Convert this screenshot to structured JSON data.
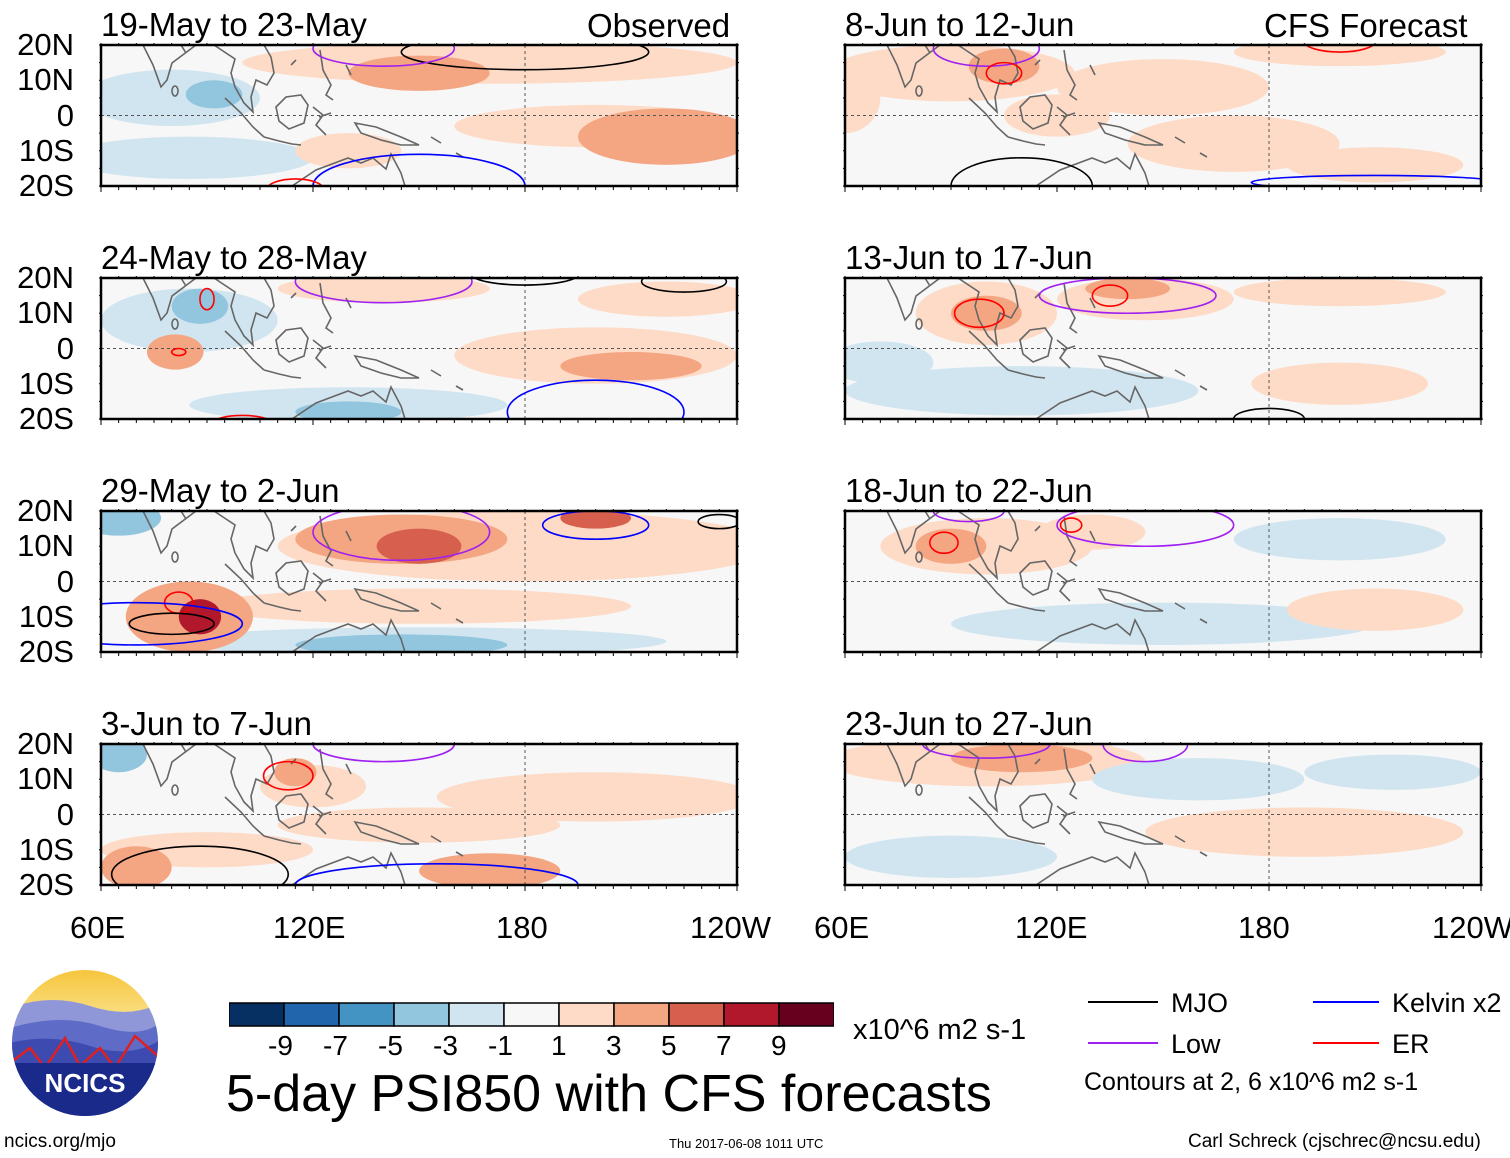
{
  "figure": {
    "title": "5-day PSI850 with CFS forecasts",
    "observed_label": "Observed",
    "forecast_label": "CFS Forecast",
    "timestamp": "Thu 2017-06-08 1011 UTC",
    "site": "ncics.org/mjo",
    "author": "Carl Schreck (cjschrec@ncsu.edu)",
    "logo_text": "NCICS"
  },
  "axes": {
    "lat_labels": [
      "20N",
      "10N",
      "0",
      "10S",
      "20S"
    ],
    "lon_labels": [
      "60E",
      "120E",
      "180",
      "120W"
    ]
  },
  "colorbar": {
    "units": "x10^6 m2 s-1",
    "ticks": [
      "-9",
      "-7",
      "-5",
      "-3",
      "-1",
      "1",
      "3",
      "5",
      "7",
      "9"
    ],
    "colors": [
      "#053061",
      "#2166ac",
      "#4393c3",
      "#92c5de",
      "#d1e5f0",
      "#f7f7f7",
      "#fddbc7",
      "#f4a582",
      "#d6604d",
      "#b2182b",
      "#67001f"
    ]
  },
  "legend": {
    "items": [
      {
        "label": "MJO",
        "color": "#000000"
      },
      {
        "label": "Kelvin x2",
        "color": "#0000ff"
      },
      {
        "label": "Low",
        "color": "#a020f0"
      },
      {
        "label": "ER",
        "color": "#ff0000"
      }
    ],
    "note": "Contours at 2, 6 x10^6 m2 s-1"
  },
  "chart_data": {
    "type": "heatmap",
    "lon_range": [
      60,
      240
    ],
    "lat_range": [
      -20,
      20
    ],
    "panels": [
      {
        "title": "19-May to 23-May",
        "side": "observed",
        "blobs": [
          [
            170,
            15,
            70,
            6,
            2
          ],
          [
            150,
            12,
            20,
            5,
            4
          ],
          [
            80,
            5,
            25,
            8,
            -2
          ],
          [
            92,
            6,
            8,
            4,
            -4
          ],
          [
            220,
            -6,
            25,
            8,
            4
          ],
          [
            200,
            -3,
            40,
            6,
            2
          ],
          [
            85,
            -12,
            35,
            6,
            -2
          ],
          [
            130,
            -10,
            15,
            5,
            2
          ]
        ],
        "contours": [
          [
            "MJO",
            180,
            18,
            35,
            5
          ],
          [
            "Low",
            140,
            19,
            20,
            5
          ],
          [
            "Kelvin",
            150,
            -20,
            30,
            9
          ],
          [
            "ER",
            115,
            -21,
            8,
            3
          ]
        ]
      },
      {
        "title": "8-Jun to 12-Jun",
        "side": "forecast",
        "blobs": [
          [
            90,
            12,
            35,
            8,
            2
          ],
          [
            105,
            14,
            10,
            5,
            4
          ],
          [
            150,
            8,
            30,
            8,
            2
          ],
          [
            200,
            18,
            30,
            4,
            2
          ],
          [
            170,
            -8,
            30,
            8,
            2
          ],
          [
            210,
            -14,
            25,
            5,
            2
          ],
          [
            120,
            0,
            15,
            6,
            2
          ],
          [
            60,
            5,
            10,
            10,
            2
          ]
        ],
        "contours": [
          [
            "Low",
            100,
            19,
            15,
            5
          ],
          [
            "ER",
            105,
            12,
            5,
            3
          ],
          [
            "MJO",
            110,
            -20,
            20,
            8
          ],
          [
            "Kelvin",
            210,
            -19,
            35,
            2
          ],
          [
            "ER",
            200,
            21,
            10,
            3
          ]
        ]
      },
      {
        "title": "24-May to 28-May",
        "side": "observed",
        "blobs": [
          [
            85,
            8,
            25,
            9,
            -2
          ],
          [
            88,
            12,
            8,
            5,
            -4
          ],
          [
            81,
            -1,
            8,
            5,
            3
          ],
          [
            130,
            -16,
            45,
            5,
            -2
          ],
          [
            130,
            -18,
            15,
            3,
            -4
          ],
          [
            200,
            -2,
            40,
            8,
            2
          ],
          [
            210,
            -5,
            20,
            4,
            4
          ],
          [
            140,
            17,
            30,
            4,
            2
          ],
          [
            220,
            14,
            25,
            5,
            2
          ]
        ],
        "contours": [
          [
            "Low",
            140,
            19,
            25,
            6
          ],
          [
            "MJO",
            180,
            21,
            15,
            3
          ],
          [
            "MJO",
            225,
            19,
            12,
            3
          ],
          [
            "ER",
            82,
            -1,
            2,
            1
          ],
          [
            "ER",
            90,
            14,
            2,
            3
          ],
          [
            "ER",
            100,
            -21,
            8,
            2
          ],
          [
            "Kelvin",
            200,
            -18,
            25,
            9
          ]
        ]
      },
      {
        "title": "13-Jun to 17-Jun",
        "side": "forecast",
        "blobs": [
          [
            100,
            10,
            20,
            9,
            2
          ],
          [
            100,
            10,
            10,
            5,
            4
          ],
          [
            145,
            14,
            25,
            6,
            2
          ],
          [
            140,
            17,
            12,
            3,
            4
          ],
          [
            200,
            16,
            30,
            4,
            2
          ],
          [
            110,
            -12,
            50,
            7,
            -2
          ],
          [
            70,
            -4,
            15,
            6,
            -2
          ],
          [
            200,
            -10,
            25,
            6,
            2
          ]
        ],
        "contours": [
          [
            "ER",
            98,
            10,
            7,
            4
          ],
          [
            "ER",
            135,
            15,
            5,
            3
          ],
          [
            "Low",
            140,
            15,
            25,
            5
          ],
          [
            "MJO",
            180,
            -20,
            10,
            3
          ]
        ]
      },
      {
        "title": "29-May to 2-Jun",
        "side": "observed",
        "blobs": [
          [
            65,
            18,
            12,
            5,
            -4
          ],
          [
            180,
            10,
            70,
            10,
            2
          ],
          [
            145,
            12,
            30,
            7,
            4
          ],
          [
            150,
            10,
            12,
            5,
            6
          ],
          [
            200,
            18,
            10,
            3,
            6
          ],
          [
            85,
            -10,
            18,
            10,
            4
          ],
          [
            88,
            -10,
            6,
            5,
            7
          ],
          [
            150,
            -7,
            60,
            5,
            2
          ],
          [
            150,
            -17,
            70,
            4,
            -2
          ],
          [
            145,
            -18,
            30,
            3,
            -4
          ]
        ],
        "contours": [
          [
            "Low",
            145,
            14,
            25,
            8
          ],
          [
            "Kelvin",
            200,
            16,
            15,
            4
          ],
          [
            "MJO",
            235,
            17,
            6,
            2
          ],
          [
            "ER",
            82,
            -6,
            4,
            3
          ],
          [
            "MJO",
            80,
            -12,
            12,
            3
          ],
          [
            "Kelvin",
            70,
            -12,
            30,
            6
          ]
        ]
      },
      {
        "title": "18-Jun to 22-Jun",
        "side": "forecast",
        "blobs": [
          [
            100,
            10,
            30,
            8,
            2
          ],
          [
            90,
            10,
            10,
            5,
            4
          ],
          [
            130,
            14,
            15,
            5,
            2
          ],
          [
            150,
            -12,
            60,
            6,
            -2
          ],
          [
            200,
            12,
            30,
            6,
            -2
          ],
          [
            210,
            -8,
            25,
            6,
            2
          ]
        ],
        "contours": [
          [
            "ER",
            88,
            11,
            4,
            3
          ],
          [
            "ER",
            124,
            16,
            3,
            2
          ],
          [
            "Low",
            145,
            16,
            25,
            6
          ],
          [
            "Low",
            95,
            20,
            10,
            3
          ]
        ]
      },
      {
        "title": "3-Jun to 7-Jun",
        "side": "observed",
        "blobs": [
          [
            65,
            17,
            8,
            5,
            -4
          ],
          [
            120,
            8,
            15,
            6,
            2
          ],
          [
            115,
            12,
            6,
            4,
            4
          ],
          [
            70,
            -15,
            10,
            6,
            4
          ],
          [
            170,
            -16,
            20,
            5,
            4
          ],
          [
            200,
            5,
            45,
            7,
            2
          ],
          [
            90,
            -10,
            30,
            5,
            2
          ],
          [
            150,
            -3,
            40,
            5,
            2
          ]
        ],
        "contours": [
          [
            "ER",
            113,
            11,
            7,
            4
          ],
          [
            "MJO",
            88,
            -17,
            25,
            8
          ],
          [
            "Kelvin",
            155,
            -20,
            40,
            6
          ],
          [
            "Low",
            140,
            20,
            20,
            5
          ]
        ]
      },
      {
        "title": "23-Jun to 27-Jun",
        "side": "forecast",
        "blobs": [
          [
            100,
            15,
            45,
            7,
            2
          ],
          [
            110,
            16,
            20,
            4,
            4
          ],
          [
            190,
            -5,
            45,
            7,
            2
          ],
          [
            90,
            -12,
            30,
            6,
            -2
          ],
          [
            160,
            10,
            30,
            6,
            -2
          ],
          [
            215,
            12,
            25,
            5,
            -2
          ]
        ],
        "contours": [
          [
            "Low",
            100,
            20,
            18,
            4
          ],
          [
            "Low",
            145,
            20,
            12,
            5
          ]
        ]
      }
    ]
  }
}
